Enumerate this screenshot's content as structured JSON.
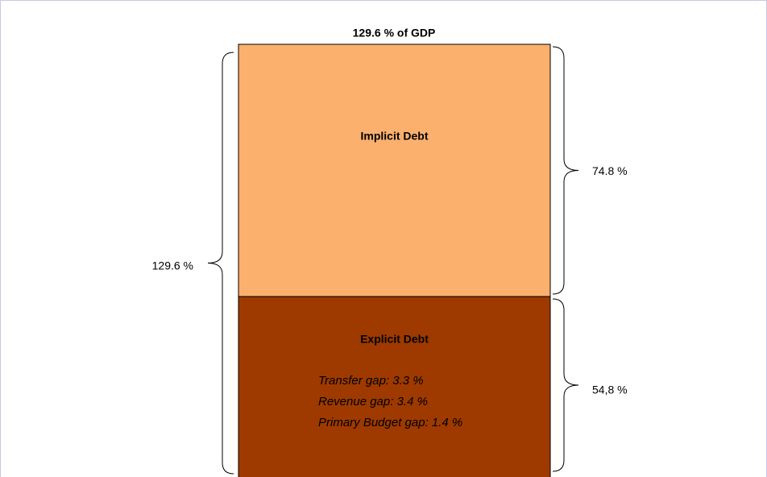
{
  "chart_data": {
    "type": "bar",
    "stacked": true,
    "title": "129.6 % of GDP",
    "series": [
      {
        "name": "Implicit Debt",
        "color": "#fbb06e",
        "values": [
          74.8
        ],
        "value_labels": [
          "74.8 %"
        ]
      },
      {
        "name": "Explicit Debt",
        "color": "#9e3a00",
        "values": [
          54.8
        ],
        "value_labels": [
          "54,8 %"
        ]
      }
    ],
    "total_label": "129.6 %",
    "annotations": [
      "Transfer gap: 3.3 %",
      "Revenue gap: 3.4 %",
      "Primary Budget gap:  1.4 %"
    ]
  }
}
